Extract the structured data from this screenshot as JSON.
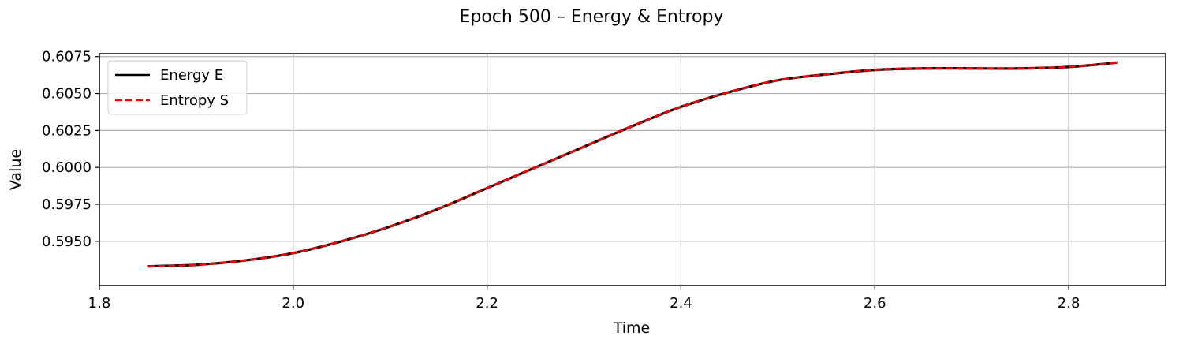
{
  "chart_data": {
    "type": "line",
    "title": "Epoch 500 – Energy & Entropy",
    "xlabel": "Time",
    "ylabel": "Value",
    "xlim": [
      1.8,
      2.9
    ],
    "ylim": [
      0.592,
      0.6077
    ],
    "xticks": [
      1.8,
      2.0,
      2.2,
      2.4,
      2.6,
      2.8
    ],
    "xtick_labels": [
      "1.8",
      "2.0",
      "2.2",
      "2.4",
      "2.6",
      "2.8"
    ],
    "yticks": [
      0.595,
      0.5975,
      0.6,
      0.6025,
      0.605,
      0.6075
    ],
    "ytick_labels": [
      "0.5950",
      "0.5975",
      "0.6000",
      "0.6025",
      "0.6050",
      "0.6075"
    ],
    "grid": true,
    "legend_position": "top-left",
    "series": [
      {
        "name": "Energy E",
        "color": "#000000",
        "style": "solid",
        "x": [
          1.85,
          1.9,
          1.95,
          2.0,
          2.05,
          2.1,
          2.15,
          2.2,
          2.25,
          2.3,
          2.35,
          2.4,
          2.45,
          2.5,
          2.55,
          2.6,
          2.65,
          2.7,
          2.75,
          2.8,
          2.85
        ],
        "y": [
          0.5933,
          0.5934,
          0.5937,
          0.5942,
          0.595,
          0.596,
          0.5972,
          0.5986,
          0.6,
          0.6014,
          0.6028,
          0.6041,
          0.6051,
          0.6059,
          0.6063,
          0.6066,
          0.6067,
          0.6067,
          0.6067,
          0.6068,
          0.6071
        ]
      },
      {
        "name": "Entropy S",
        "color": "#ff0000",
        "style": "dashed",
        "x": [
          1.85,
          1.9,
          1.95,
          2.0,
          2.05,
          2.1,
          2.15,
          2.2,
          2.25,
          2.3,
          2.35,
          2.4,
          2.45,
          2.5,
          2.55,
          2.6,
          2.65,
          2.7,
          2.75,
          2.8,
          2.85
        ],
        "y": [
          0.5933,
          0.5934,
          0.5937,
          0.5942,
          0.595,
          0.596,
          0.5972,
          0.5986,
          0.6,
          0.6014,
          0.6028,
          0.6041,
          0.6051,
          0.6059,
          0.6063,
          0.6066,
          0.6067,
          0.6067,
          0.6067,
          0.6068,
          0.6071
        ]
      }
    ]
  }
}
